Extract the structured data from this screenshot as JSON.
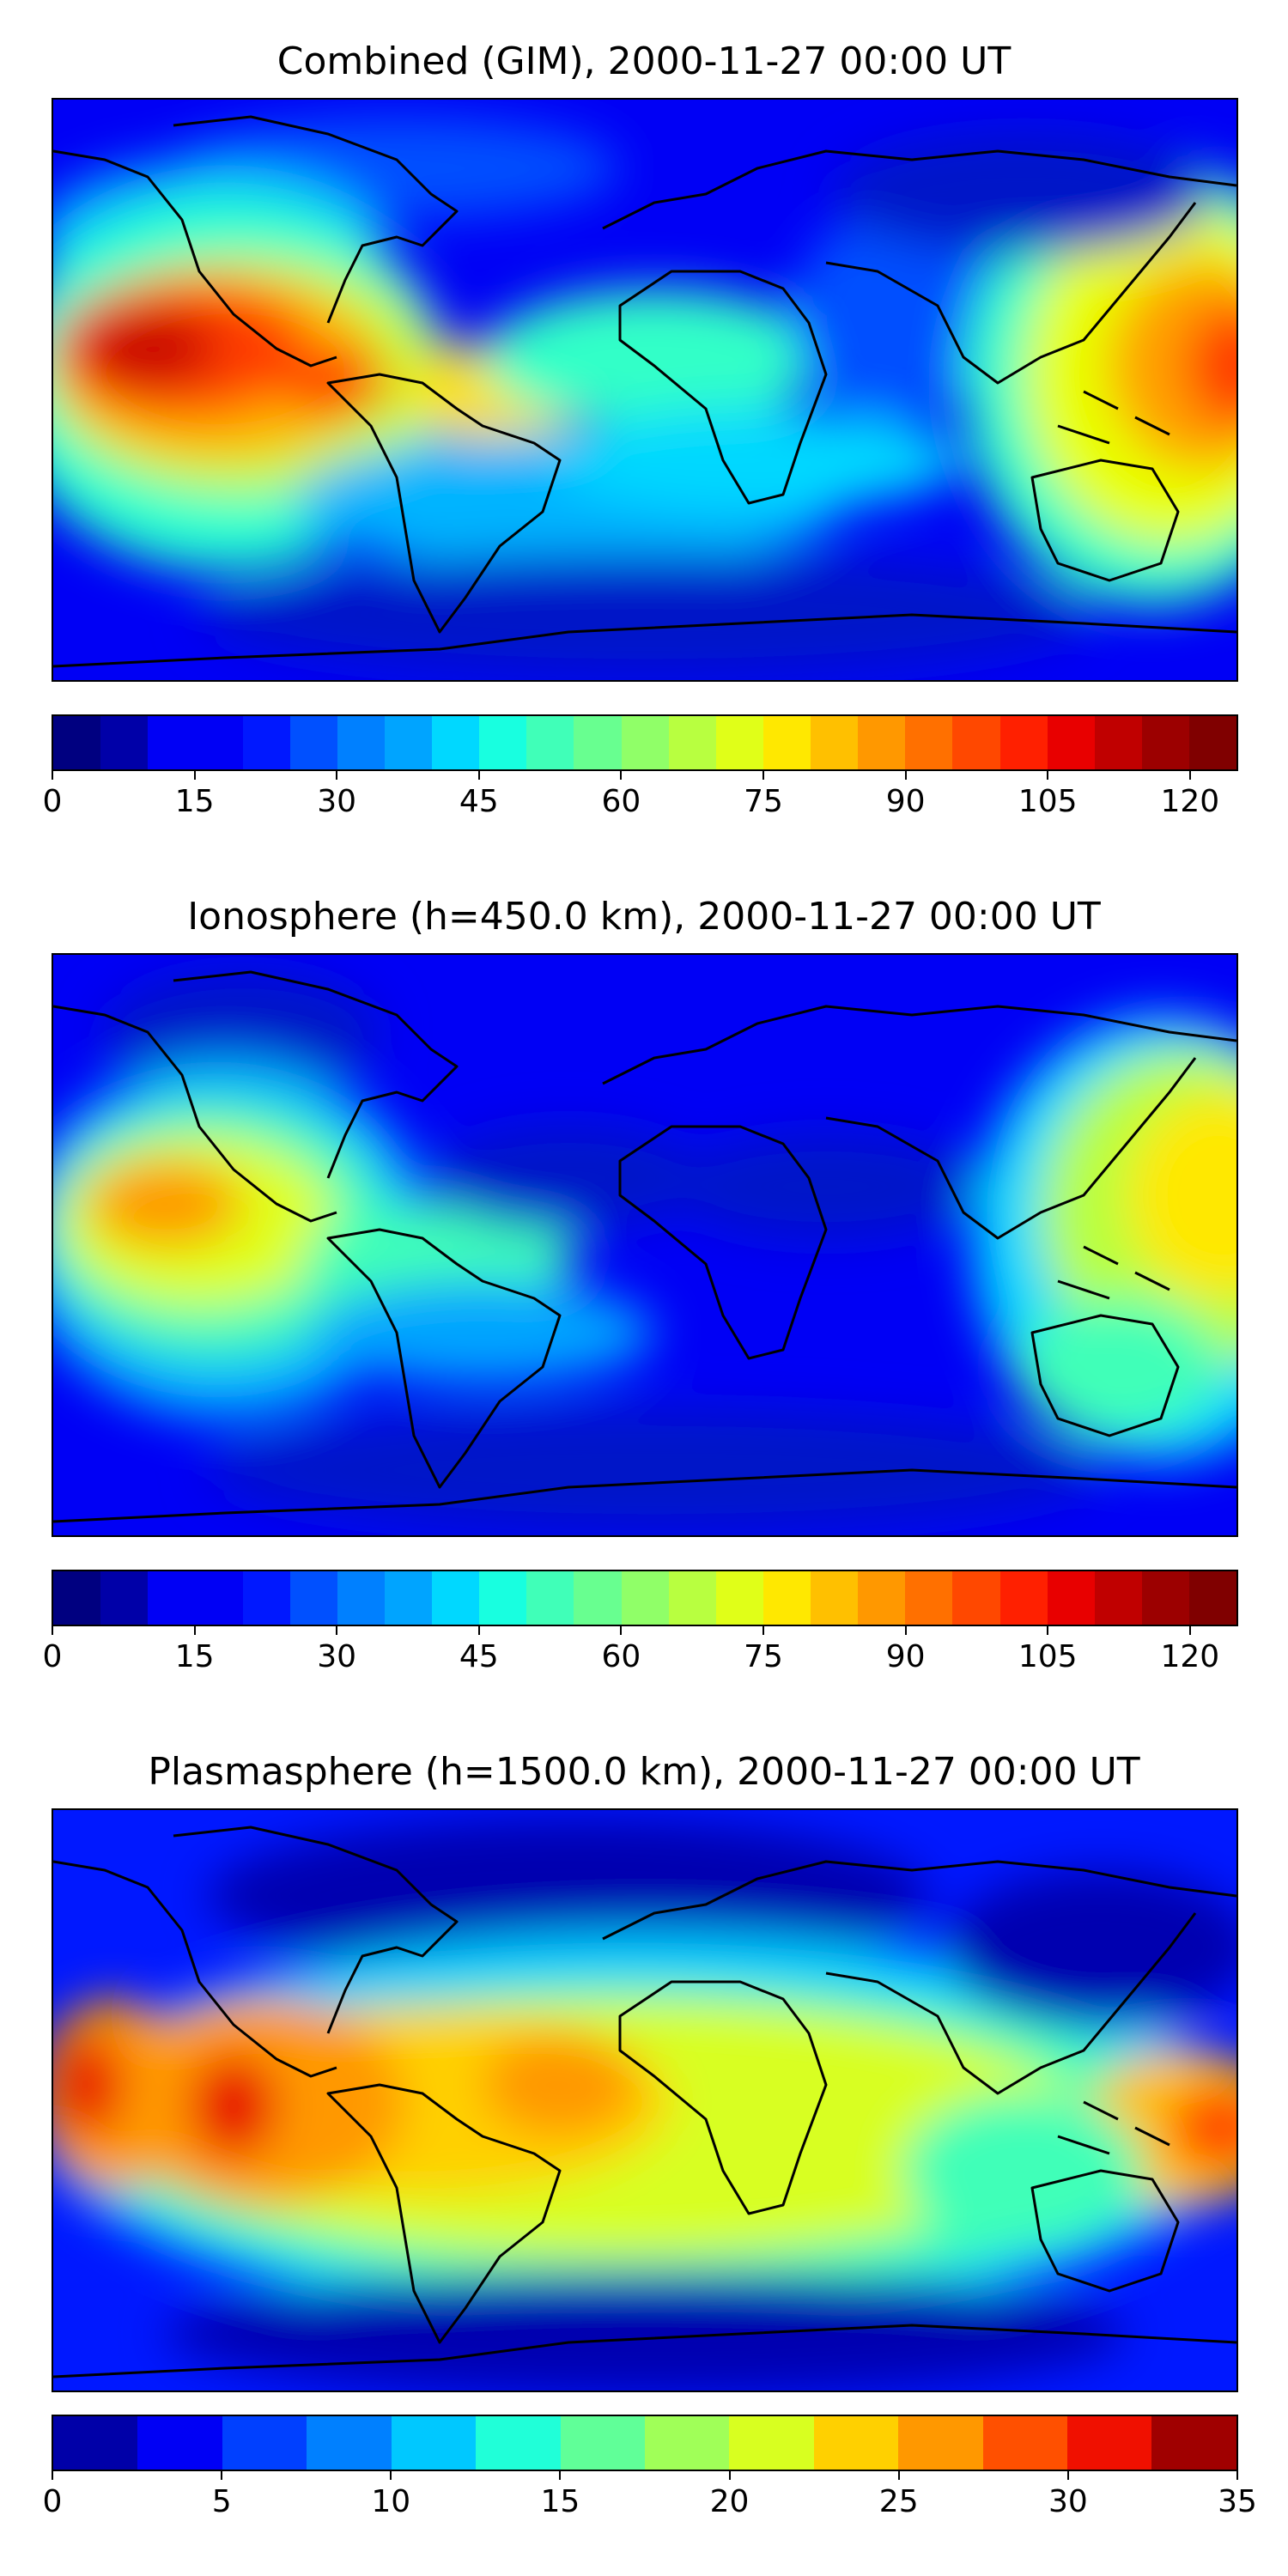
{
  "panels": [
    {
      "title": "Combined (GIM), 2000-11-27 00:00 UT",
      "colorbar": {
        "levels": [
          0,
          5,
          10,
          15,
          20,
          25,
          30,
          35,
          40,
          45,
          50,
          55,
          60,
          65,
          70,
          75,
          80,
          85,
          90,
          95,
          100,
          105,
          110,
          115,
          120,
          125
        ],
        "tick_labels": [
          "0",
          "15",
          "30",
          "45",
          "60",
          "75",
          "90",
          "105",
          "120"
        ],
        "tick_values": [
          0,
          15,
          30,
          45,
          60,
          75,
          90,
          105,
          120
        ],
        "vmin": 0,
        "vmax": 125
      }
    },
    {
      "title": "Ionosphere  (h=450.0 km), 2000-11-27 00:00 UT",
      "colorbar": {
        "levels": [
          0,
          5,
          10,
          15,
          20,
          25,
          30,
          35,
          40,
          45,
          50,
          55,
          60,
          65,
          70,
          75,
          80,
          85,
          90,
          95,
          100,
          105,
          110,
          115,
          120,
          125
        ],
        "tick_labels": [
          "0",
          "15",
          "30",
          "45",
          "60",
          "75",
          "90",
          "105",
          "120"
        ],
        "tick_values": [
          0,
          15,
          30,
          45,
          60,
          75,
          90,
          105,
          120
        ],
        "vmin": 0,
        "vmax": 125
      }
    },
    {
      "title": "Plasmasphere (h=1500.0 km), 2000-11-27 00:00 UT",
      "colorbar": {
        "levels": [
          0,
          2.5,
          5,
          7.5,
          10,
          12.5,
          15,
          17.5,
          20,
          22.5,
          25,
          27.5,
          30,
          32.5,
          35
        ],
        "tick_labels": [
          "0",
          "5",
          "10",
          "15",
          "20",
          "25",
          "30",
          "35"
        ],
        "tick_values": [
          0,
          5,
          10,
          15,
          20,
          25,
          30,
          35
        ],
        "vmin": 0,
        "vmax": 35
      }
    }
  ],
  "colormap": "jet",
  "colors": {
    "background_low": "#0000f5",
    "coastline": "#000000"
  }
}
